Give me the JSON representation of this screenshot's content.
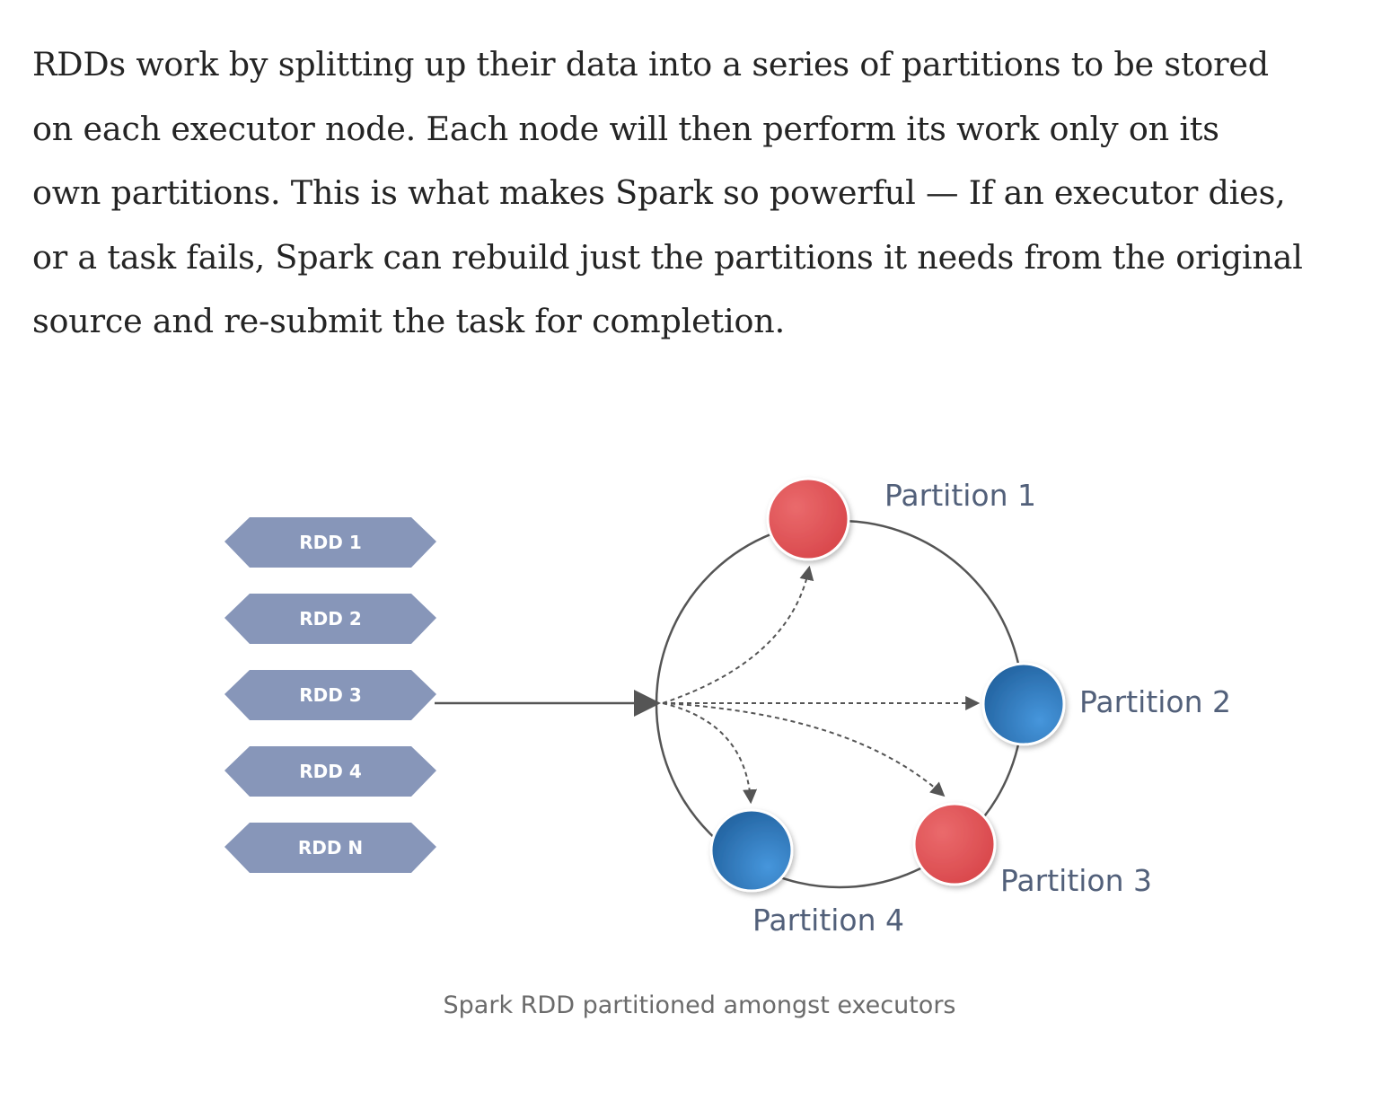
{
  "article": {
    "paragraph_lines": [
      "RDDs work by splitting up their data into a series of partitions to be stored",
      "on each executor node. Each node will then perform its work only on its",
      "own partitions. This is what makes Spark so powerful — If an executor dies,",
      "or a task fails, Spark can rebuild just the partitions it needs from the original",
      "source and re-submit the task for completion."
    ]
  },
  "figure": {
    "rdds": [
      "RDD 1",
      "RDD 2",
      "RDD 3",
      "RDD 4",
      "RDD N"
    ],
    "partitions": {
      "p1": "Partition 1",
      "p2": "Partition 2",
      "p3": "Partition 3",
      "p4": "Partition 4"
    },
    "colors": {
      "rdd_fill": "#8796b9",
      "red_partition": "#e05457",
      "blue_partition": "#2f78bd",
      "line": "#555555",
      "label": "#52607a"
    },
    "caption": "Spark RDD partitioned amongst executors"
  }
}
